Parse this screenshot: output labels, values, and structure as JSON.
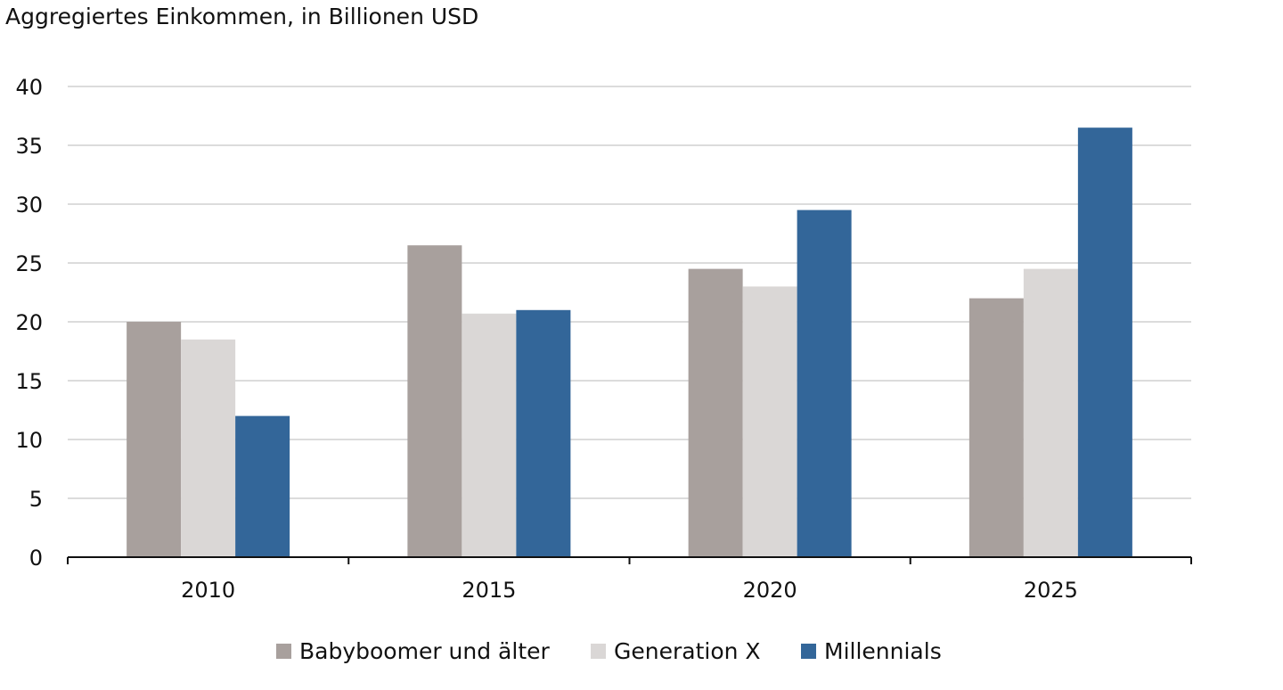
{
  "chart_data": {
    "type": "bar",
    "title": "Aggregiertes Einkommen, in Billionen USD",
    "xlabel": "",
    "ylabel": "",
    "categories": [
      "2010",
      "2015",
      "2020",
      "2025"
    ],
    "ylim": [
      0,
      40
    ],
    "yticks": [
      "0",
      "5",
      "10",
      "15",
      "20",
      "25",
      "30",
      "35",
      "40"
    ],
    "grid": true,
    "legend_position": "bottom",
    "series": [
      {
        "name": "Babyboomer und älter",
        "color": "#a8a09d",
        "values": [
          20.0,
          26.5,
          24.5,
          22.0
        ]
      },
      {
        "name": "Generation X",
        "color": "#dad7d6",
        "values": [
          18.5,
          20.7,
          23.0,
          24.5
        ]
      },
      {
        "name": "Millennials",
        "color": "#336699",
        "values": [
          12.0,
          21.0,
          29.5,
          36.5
        ]
      }
    ]
  }
}
